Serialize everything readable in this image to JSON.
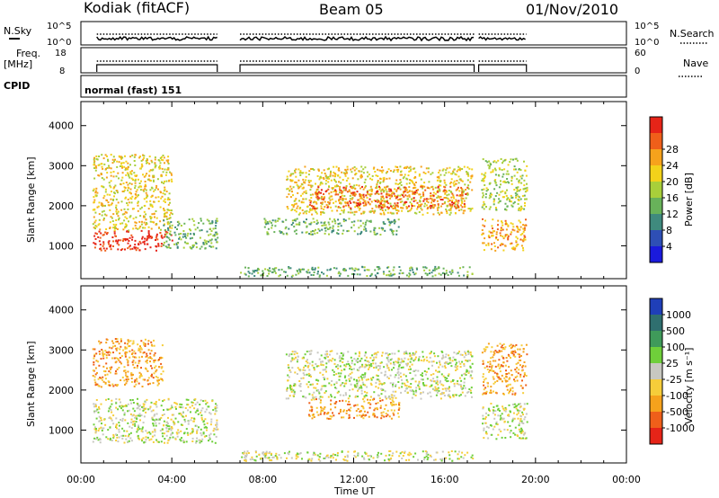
{
  "header": {
    "station": "Kodiak (fitACF)",
    "beam": "Beam 05",
    "date": "01/Nov/2010"
  },
  "status_panels": {
    "nsky_label": "N.Sky",
    "nsearch_label": "N.Search",
    "nsky_ticks": [
      "10^5",
      "10^0"
    ],
    "nsearch_ticks": [
      "10^5",
      "10^0"
    ],
    "freq_label_1": "Freq.",
    "freq_label_2": "[MHz]",
    "freq_ticks": [
      "18",
      "8"
    ],
    "nave_label": "Nave",
    "nave_ticks": [
      "60",
      "0"
    ],
    "cpid_label": "CPID",
    "cpid_value": "normal (fast) 151"
  },
  "chart_data": [
    {
      "type": "heatmap",
      "name": "power-panel",
      "ylabel": "Slant Range [km]",
      "xlabel": "",
      "xlim": [
        0,
        24
      ],
      "ylim": [
        180,
        4600
      ],
      "yticks": [
        "1000",
        "2000",
        "3000",
        "4000"
      ],
      "colorbar": {
        "label": "Power [dB]",
        "ticks": [
          "4",
          "8",
          "12",
          "16",
          "20",
          "24",
          "28"
        ],
        "colors": [
          "#1a1adc",
          "#2e4fb5",
          "#3f8a7e",
          "#68b25a",
          "#a8cf3a",
          "#f2d21a",
          "#f6a21c",
          "#ef5f1a",
          "#e62418"
        ]
      },
      "regions": [
        {
          "t0": 0.5,
          "t1": 4.0,
          "r0": 900,
          "r1": 1400,
          "level": 8
        },
        {
          "t0": 0.5,
          "t1": 4.0,
          "r0": 1400,
          "r1": 3300,
          "level": 5
        },
        {
          "t0": 3.6,
          "t1": 6.0,
          "r0": 950,
          "r1": 1700,
          "level": 3
        },
        {
          "t0": 9.0,
          "t1": 17.2,
          "r0": 1800,
          "r1": 3000,
          "level": 5
        },
        {
          "t0": 10.0,
          "t1": 17.0,
          "r0": 1950,
          "r1": 2500,
          "level": 7
        },
        {
          "t0": 8.0,
          "t1": 14.0,
          "r0": 1300,
          "r1": 1700,
          "level": 3
        },
        {
          "t0": 7.0,
          "t1": 17.3,
          "r0": 250,
          "r1": 500,
          "level": 3
        },
        {
          "t0": 17.6,
          "t1": 19.6,
          "r0": 900,
          "r1": 1700,
          "level": 6
        },
        {
          "t0": 17.6,
          "t1": 19.6,
          "r0": 1900,
          "r1": 3200,
          "level": 4
        }
      ]
    },
    {
      "type": "heatmap",
      "name": "velocity-panel",
      "ylabel": "Slant Range [km]",
      "xlabel": "Time UT",
      "xlim": [
        0,
        24
      ],
      "ylim": [
        180,
        4600
      ],
      "yticks": [
        "1000",
        "2000",
        "3000",
        "4000"
      ],
      "xticks": [
        "00:00",
        "04:00",
        "08:00",
        "12:00",
        "16:00",
        "20:00",
        "00:00"
      ],
      "colorbar": {
        "label": "Velocity [m s⁻¹]",
        "ticks": [
          "1000",
          "500",
          "100",
          "25",
          "-25",
          "-100",
          "-500",
          "-1000"
        ],
        "colors": [
          "#1f3fb8",
          "#2f6f6f",
          "#3f9a5a",
          "#6fcf3a",
          "#c8c8c0",
          "#f6cd3a",
          "#f6a21c",
          "#ef5f1a",
          "#e62418"
        ]
      },
      "regions": [
        {
          "t0": 0.5,
          "t1": 6.0,
          "r0": 700,
          "r1": 1800,
          "level": 4
        },
        {
          "t0": 0.5,
          "t1": 3.6,
          "r0": 2100,
          "r1": 3300,
          "level": 6
        },
        {
          "t0": 9.0,
          "t1": 17.2,
          "r0": 1800,
          "r1": 3000,
          "level": 4
        },
        {
          "t0": 10.0,
          "t1": 14.0,
          "r0": 1300,
          "r1": 1800,
          "level": 6
        },
        {
          "t0": 7.0,
          "t1": 17.3,
          "r0": 250,
          "r1": 500,
          "level": 4
        },
        {
          "t0": 17.6,
          "t1": 19.6,
          "r0": 800,
          "r1": 1700,
          "level": 4
        },
        {
          "t0": 17.6,
          "t1": 19.6,
          "r0": 1900,
          "r1": 3200,
          "level": 6
        }
      ]
    }
  ]
}
